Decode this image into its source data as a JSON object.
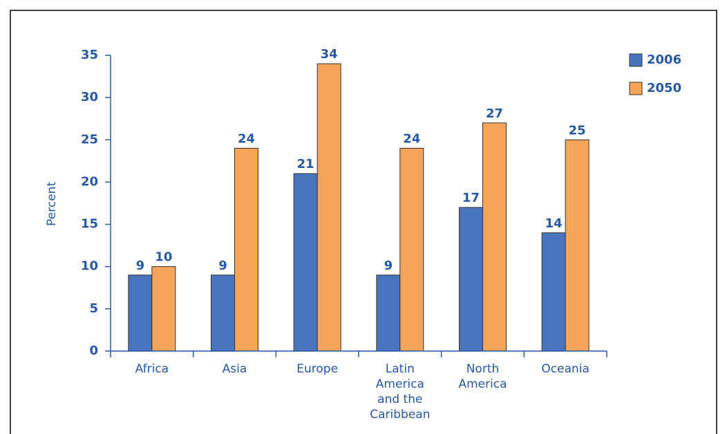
{
  "chart_data": {
    "type": "bar",
    "y_label": "Percent",
    "categories": [
      "Africa",
      "Asia",
      "Europe",
      "Latin America and the Caribbean",
      "North America",
      "Oceania"
    ],
    "series": [
      {
        "name": "2006",
        "color": "#4a74bd",
        "values": [
          9,
          9,
          21,
          9,
          17,
          14
        ]
      },
      {
        "name": "2050",
        "color": "#f5a55a",
        "values": [
          10,
          24,
          34,
          24,
          27,
          25
        ]
      }
    ],
    "ylim": [
      0,
      35
    ],
    "yticks": [
      0,
      5,
      10,
      15,
      20,
      25,
      30,
      35
    ],
    "legend": "top-right"
  }
}
